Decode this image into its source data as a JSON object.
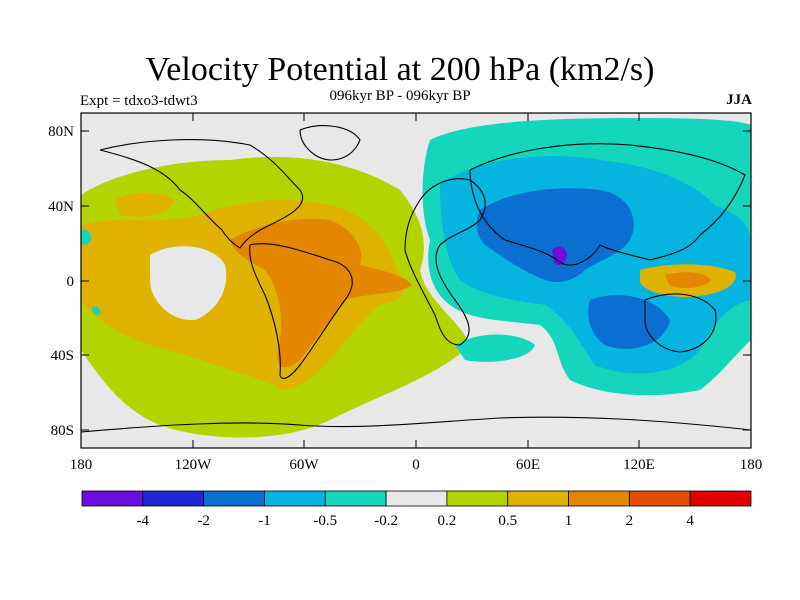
{
  "title": "Velocity Potential at 200 hPa (km2/s)",
  "subtitle": "096kyr BP - 096kyr BP",
  "left_label": "Expt = tdxo3-tdwt3",
  "right_label": "JJA",
  "lat_ticks": [
    "80N",
    "40N",
    "0",
    "40S",
    "80S"
  ],
  "lon_ticks": [
    "180",
    "120W",
    "60W",
    "0",
    "60E",
    "120E",
    "180"
  ],
  "colorbar": {
    "labels": [
      "-4",
      "-2",
      "-1",
      "-0.5",
      "-0.2",
      "0.2",
      "0.5",
      "1",
      "2",
      "4"
    ],
    "colors": [
      "#6a0fd9",
      "#1c28d2",
      "#0a6fd0",
      "#06b4e0",
      "#15d6bd",
      "#e8e8e8",
      "#b4d402",
      "#e0b200",
      "#e38600",
      "#e04f00",
      "#e00000"
    ]
  },
  "palette": {
    "neutral": "#e8e8e8",
    "pos1": "#b4d402",
    "pos2": "#e0b200",
    "pos3": "#e38600",
    "neg1": "#15d6bd",
    "neg2": "#06b4e0",
    "neg3": "#0a6fd0",
    "neg4": "#1c28d2",
    "neg5": "#6a0fd9"
  }
}
